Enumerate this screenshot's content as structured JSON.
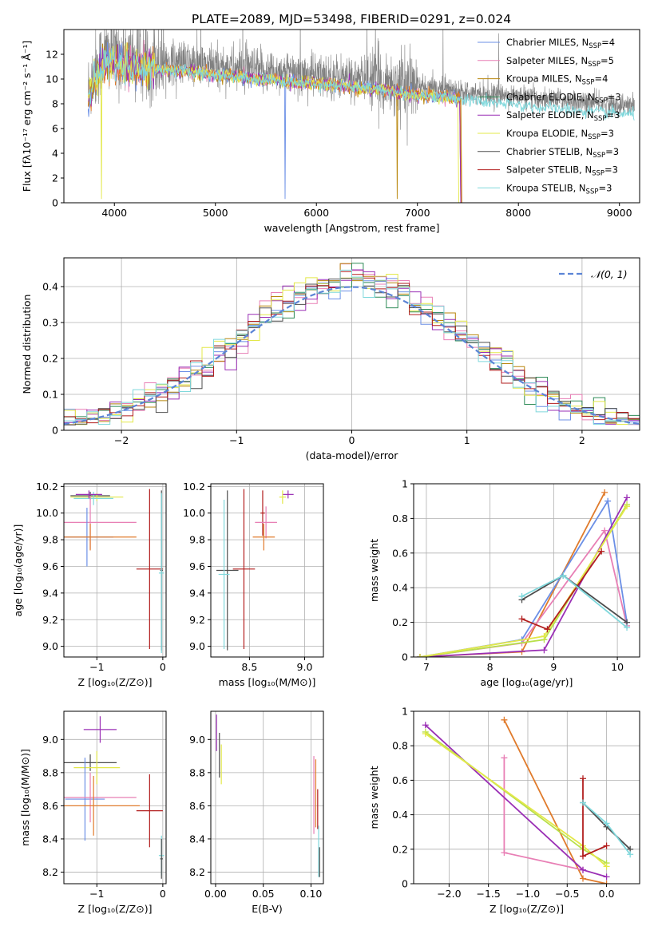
{
  "colors": {
    "Chabrier MILES": "#6b8fe6",
    "Salpeter MILES": "#e87fb5",
    "Kroupa MILES": "#b8860b",
    "Chabrier ELODIE": "#2e8b57",
    "Salpeter ELODIE": "#9a2fb5",
    "Kroupa ELODIE": "#e3e84a",
    "Chabrier STELIB": "#4d4d4d",
    "Salpeter STELIB": "#b21e1e",
    "Kroupa STELIB": "#7fd8dc",
    "orange": "#e07b2c",
    "lime": "#b8e04a",
    "grey": "#808080",
    "gauss": "#5b84d6"
  },
  "chart_data": [
    {
      "id": "spectrum",
      "type": "line",
      "title": "PLATE=2089, MJD=53498, FIBERID=0291, z=0.024",
      "xlabel": "wavelength [Angstrom, rest frame]",
      "ylabel": "Flux [fλ10⁻¹⁷ erg cm⁻² s⁻¹ Å⁻¹]",
      "xlim": [
        3500,
        9200
      ],
      "ylim": [
        0,
        14
      ],
      "xticks": [
        4000,
        5000,
        6000,
        7000,
        8000,
        9000
      ],
      "yticks": [
        0,
        2,
        4,
        6,
        8,
        10,
        12
      ],
      "legend_position": "top-right",
      "data_continuum": {
        "x": [
          3740,
          3800,
          3900,
          4000,
          4100,
          4200,
          4400,
          4600,
          4800,
          5000,
          5200,
          5400,
          5600,
          5800,
          6000,
          6200,
          6400,
          6600,
          6800,
          7000,
          7200,
          7400,
          7600,
          7800,
          8000,
          8200,
          8400,
          8600,
          8800,
          9000,
          9150
        ],
        "y": [
          9.0,
          10.5,
          12.0,
          12.0,
          11.8,
          11.6,
          11.5,
          11.4,
          11.2,
          11.0,
          10.9,
          10.7,
          10.6,
          10.4,
          10.3,
          10.2,
          10.0,
          9.9,
          9.6,
          9.4,
          9.3,
          9.1,
          8.9,
          8.7,
          8.6,
          8.4,
          8.3,
          8.1,
          8.0,
          7.9,
          7.8
        ]
      },
      "legend": [
        {
          "label": "Chabrier MILES, N",
          "sub": "SSP",
          "suffix": "=4",
          "color": "#6b8fe6"
        },
        {
          "label": "Salpeter MILES, N",
          "sub": "SSP",
          "suffix": "=5",
          "color": "#e87fb5"
        },
        {
          "label": "Kroupa MILES, N",
          "sub": "SSP",
          "suffix": "=4",
          "color": "#b8860b"
        },
        {
          "label": "Chabrier ELODIE, N",
          "sub": "SSP",
          "suffix": "=3",
          "color": "#2e8b57"
        },
        {
          "label": "Salpeter ELODIE, N",
          "sub": "SSP",
          "suffix": "=3",
          "color": "#9a2fb5"
        },
        {
          "label": "Kroupa ELODIE, N",
          "sub": "SSP",
          "suffix": "=3",
          "color": "#e3e84a"
        },
        {
          "label": "Chabrier STELIB, N",
          "sub": "SSP",
          "suffix": "=3",
          "color": "#4d4d4d"
        },
        {
          "label": "Salpeter STELIB, N",
          "sub": "SSP",
          "suffix": "=3",
          "color": "#b21e1e"
        },
        {
          "label": "Kroupa STELIB, N",
          "sub": "SSP",
          "suffix": "=3",
          "color": "#7fd8dc"
        }
      ]
    },
    {
      "id": "residuals",
      "type": "line",
      "xlabel": "(data-model)/error",
      "ylabel": "Normed distribution",
      "xlim": [
        -2.5,
        2.5
      ],
      "ylim": [
        0,
        0.48
      ],
      "xticks": [
        -2,
        -1,
        0,
        1,
        2
      ],
      "xtick_labels": [
        "−2",
        "−1",
        "0",
        "1",
        "2"
      ],
      "yticks": [
        0.0,
        0.1,
        0.2,
        0.3,
        0.4
      ],
      "legend_position": "top-right",
      "legend": [
        {
          "label": "𝒩(0, 1)",
          "color": "#5b84d6",
          "style": "dashed"
        }
      ]
    },
    {
      "id": "z_age",
      "type": "scatter",
      "xlabel": "Z [log₁₀(Z/Z⊙)]",
      "ylabel": "age  [log₁₀(age/yr)]",
      "xlim": [
        -1.5,
        0.05
      ],
      "ylim": [
        8.92,
        10.22
      ],
      "xticks": [
        -1,
        0
      ],
      "xtick_labels": [
        "−1",
        "0"
      ],
      "yticks": [
        9.0,
        9.2,
        9.4,
        9.6,
        9.8,
        10.0,
        10.2
      ],
      "ytick_labels": [
        "9.0",
        "9.2",
        "9.4",
        "9.6",
        "9.8",
        "10.0",
        "10.2"
      ],
      "crosses": [
        {
          "x": -1.1,
          "y": 10.13,
          "xerr": 0.3,
          "yerr": 0.03,
          "color": "#4d4d4d"
        },
        {
          "x": -1.0,
          "y": 10.12,
          "xerr": 0.4,
          "yerr": 0.03,
          "color": "#e3e84a"
        },
        {
          "x": -1.05,
          "y": 10.11,
          "xerr": 0.3,
          "yerr": 0.05,
          "color": "#7fd8dc"
        },
        {
          "x": -1.12,
          "y": 10.14,
          "xerr": 0.2,
          "yerr": 0.03,
          "color": "#9a2fb5"
        },
        {
          "x": -1.1,
          "y": 9.93,
          "xerr": 0.7,
          "yerr": 0.2,
          "color": "#e87fb5"
        },
        {
          "x": -1.15,
          "y": 9.82,
          "xerr": 0.4,
          "yerr": 0.22,
          "color": "#6b8fe6"
        },
        {
          "x": -1.1,
          "y": 9.82,
          "xerr": 0.7,
          "yerr": 0.1,
          "color": "#e07b2c"
        },
        {
          "x": -0.2,
          "y": 9.58,
          "xerr": 0.2,
          "yerr": 0.6,
          "color": "#b21e1e"
        },
        {
          "x": -0.02,
          "y": 9.57,
          "xerr": 0.02,
          "yerr": 0.6,
          "color": "#4d4d4d"
        },
        {
          "x": -0.02,
          "y": 9.55,
          "xerr": 0.04,
          "yerr": 0.6,
          "color": "#7fd8dc"
        }
      ]
    },
    {
      "id": "mass_age",
      "type": "scatter",
      "xlabel": "mass [log₁₀(M/M⊙)]",
      "ylabel": "",
      "xlim": [
        8.15,
        9.17
      ],
      "ylim": [
        8.92,
        10.22
      ],
      "xticks": [
        8.5,
        9.0
      ],
      "xtick_labels": [
        "8.5",
        "9.0"
      ],
      "yticks": [
        9.0,
        9.2,
        9.4,
        9.6,
        9.8,
        10.0,
        10.2
      ],
      "ytick_labels": [
        "9.0",
        "9.2",
        "9.4",
        "9.6",
        "9.8",
        "10.0",
        "10.2"
      ],
      "crosses": [
        {
          "x": 8.85,
          "y": 10.14,
          "xerr": 0.05,
          "yerr": 0.03,
          "color": "#9a2fb5"
        },
        {
          "x": 8.8,
          "y": 10.12,
          "xerr": 0.03,
          "yerr": 0.05,
          "color": "#e3e84a"
        },
        {
          "x": 8.62,
          "y": 10.0,
          "xerr": 0.02,
          "yerr": 0.17,
          "color": "#b21e1e"
        },
        {
          "x": 8.65,
          "y": 9.93,
          "xerr": 0.1,
          "yerr": 0.12,
          "color": "#e87fb5"
        },
        {
          "x": 8.63,
          "y": 9.82,
          "xerr": 0.1,
          "yerr": 0.1,
          "color": "#e07b2c"
        },
        {
          "x": 8.3,
          "y": 9.57,
          "xerr": 0.1,
          "yerr": 0.6,
          "color": "#4d4d4d"
        },
        {
          "x": 8.45,
          "y": 9.58,
          "xerr": 0.1,
          "yerr": 0.6,
          "color": "#b21e1e"
        },
        {
          "x": 8.27,
          "y": 9.54,
          "xerr": 0.05,
          "yerr": 0.56,
          "color": "#7fd8dc"
        }
      ]
    },
    {
      "id": "age_weight",
      "type": "line",
      "xlabel": "age  [log₁₀(age/yr)]",
      "ylabel": "mass weight",
      "xlim": [
        6.8,
        10.35
      ],
      "ylim": [
        0,
        1.0
      ],
      "xticks": [
        7,
        8,
        9,
        10
      ],
      "yticks": [
        0.0,
        0.2,
        0.4,
        0.6,
        0.8,
        1.0
      ],
      "series": [
        {
          "color": "#e07b2c",
          "x": [
            6.9,
            8.5,
            9.8
          ],
          "y": [
            0.0,
            0.03,
            0.95
          ]
        },
        {
          "color": "#e87fb5",
          "x": [
            6.9,
            8.5,
            9.8,
            10.15
          ],
          "y": [
            0.0,
            0.08,
            0.73,
            0.18
          ]
        },
        {
          "color": "#6b8fe6",
          "x": [
            6.9,
            8.5,
            9.85,
            10.15
          ],
          "y": [
            0.0,
            0.1,
            0.9,
            0.2
          ]
        },
        {
          "color": "#9a2fb5",
          "x": [
            6.9,
            8.85,
            10.15
          ],
          "y": [
            0.0,
            0.04,
            0.92
          ]
        },
        {
          "color": "#b8e04a",
          "x": [
            6.9,
            8.85,
            10.15
          ],
          "y": [
            0.0,
            0.1,
            0.88
          ]
        },
        {
          "color": "#e3e84a",
          "x": [
            6.9,
            8.85,
            10.15
          ],
          "y": [
            0.0,
            0.12,
            0.87
          ]
        },
        {
          "color": "#b21e1e",
          "x": [
            8.5,
            8.9,
            9.75
          ],
          "y": [
            0.22,
            0.16,
            0.61
          ]
        },
        {
          "color": "#4d4d4d",
          "x": [
            8.5,
            9.15,
            10.15
          ],
          "y": [
            0.33,
            0.47,
            0.2
          ]
        },
        {
          "color": "#7fd8dc",
          "x": [
            8.5,
            9.15,
            10.15
          ],
          "y": [
            0.35,
            0.47,
            0.17
          ]
        }
      ]
    },
    {
      "id": "z_mass",
      "type": "scatter",
      "xlabel": "Z [log₁₀(Z/Z⊙)]",
      "ylabel": "mass [log₁₀(M/M⊙)]",
      "xlim": [
        -1.5,
        0.05
      ],
      "ylim": [
        8.13,
        9.17
      ],
      "xticks": [
        -1,
        0
      ],
      "xtick_labels": [
        "−1",
        "0"
      ],
      "yticks": [
        8.2,
        8.4,
        8.6,
        8.8,
        9.0
      ],
      "ytick_labels": [
        "8.2",
        "8.4",
        "8.6",
        "8.8",
        "9.0"
      ],
      "crosses": [
        {
          "x": -0.95,
          "y": 9.06,
          "xerr": 0.25,
          "yerr": 0.08,
          "color": "#9a2fb5"
        },
        {
          "x": -1.1,
          "y": 8.86,
          "xerr": 0.4,
          "yerr": 0.05,
          "color": "#4d4d4d"
        },
        {
          "x": -1.0,
          "y": 8.83,
          "xerr": 0.35,
          "yerr": 0.1,
          "color": "#e3e84a"
        },
        {
          "x": -1.18,
          "y": 8.64,
          "xerr": 0.3,
          "yerr": 0.25,
          "color": "#6b8fe6"
        },
        {
          "x": -1.1,
          "y": 8.65,
          "xerr": 0.7,
          "yerr": 0.15,
          "color": "#e87fb5"
        },
        {
          "x": -1.05,
          "y": 8.6,
          "xerr": 0.7,
          "yerr": 0.18,
          "color": "#e07b2c"
        },
        {
          "x": -0.2,
          "y": 8.57,
          "xerr": 0.2,
          "yerr": 0.22,
          "color": "#b21e1e"
        },
        {
          "x": -0.02,
          "y": 8.3,
          "xerr": 0.04,
          "yerr": 0.12,
          "color": "#7fd8dc"
        },
        {
          "x": -0.02,
          "y": 8.28,
          "xerr": 0.02,
          "yerr": 0.12,
          "color": "#4d4d4d"
        }
      ]
    },
    {
      "id": "ebv_mass",
      "type": "scatter",
      "xlabel": "E(B-V)",
      "ylabel": "",
      "xlim": [
        -0.005,
        0.113
      ],
      "ylim": [
        8.13,
        9.17
      ],
      "xticks": [
        0.0,
        0.05,
        0.1
      ],
      "xtick_labels": [
        "0.00",
        "0.05",
        "0.10"
      ],
      "yticks": [
        8.2,
        8.4,
        8.6,
        8.8,
        9.0
      ],
      "ytick_labels": [
        "8.2",
        "8.4",
        "8.6",
        "8.8",
        "9.0"
      ],
      "vlines": [
        {
          "x": 0.001,
          "y0": 8.93,
          "y1": 9.15,
          "color": "#9a2fb5"
        },
        {
          "x": 0.004,
          "y0": 8.77,
          "y1": 9.04,
          "color": "#4d4d4d"
        },
        {
          "x": 0.006,
          "y0": 8.73,
          "y1": 8.97,
          "color": "#e3e84a"
        },
        {
          "x": 0.103,
          "y0": 8.43,
          "y1": 8.9,
          "color": "#e87fb5"
        },
        {
          "x": 0.105,
          "y0": 8.47,
          "y1": 8.88,
          "color": "#e07b2c"
        },
        {
          "x": 0.107,
          "y0": 8.46,
          "y1": 8.7,
          "color": "#b21e1e"
        },
        {
          "x": 0.108,
          "y0": 8.17,
          "y1": 8.48,
          "color": "#7fd8dc"
        },
        {
          "x": 0.109,
          "y0": 8.17,
          "y1": 8.35,
          "color": "#4d4d4d"
        }
      ]
    },
    {
      "id": "z_weight",
      "type": "line",
      "xlabel": "Z [log₁₀(Z/Z⊙)]",
      "ylabel": "mass weight",
      "xlim": [
        -2.45,
        0.42
      ],
      "ylim": [
        0,
        1.0
      ],
      "xticks": [
        -2.0,
        -1.5,
        -1.0,
        -0.5,
        0.0
      ],
      "xtick_labels": [
        "−2.0",
        "−1.5",
        "−1.0",
        "−0.5",
        "0.0"
      ],
      "yticks": [
        0.0,
        0.2,
        0.4,
        0.6,
        0.8,
        1.0
      ],
      "series": [
        {
          "color": "#e07b2c",
          "x": [
            -1.3,
            -0.3,
            0.0
          ],
          "y": [
            0.95,
            0.03,
            0.0
          ]
        },
        {
          "color": "#e87fb5",
          "x": [
            -1.3,
            -1.3,
            -0.3
          ],
          "y": [
            0.73,
            0.18,
            0.08
          ]
        },
        {
          "color": "#9a2fb5",
          "x": [
            -2.3,
            -0.3,
            0.0
          ],
          "y": [
            0.92,
            0.08,
            0.04
          ]
        },
        {
          "color": "#b8e04a",
          "x": [
            -2.3,
            -0.3,
            0.0
          ],
          "y": [
            0.88,
            0.2,
            0.12
          ]
        },
        {
          "color": "#e3e84a",
          "x": [
            -2.3,
            -0.3,
            0.0
          ],
          "y": [
            0.87,
            0.22,
            0.1
          ]
        },
        {
          "color": "#b21e1e",
          "x": [
            -0.3,
            -0.3,
            0.0
          ],
          "y": [
            0.61,
            0.16,
            0.22
          ]
        },
        {
          "color": "#4d4d4d",
          "x": [
            -0.3,
            0.0,
            0.3
          ],
          "y": [
            0.47,
            0.33,
            0.2
          ]
        },
        {
          "color": "#7fd8dc",
          "x": [
            -0.3,
            0.0,
            0.3
          ],
          "y": [
            0.47,
            0.35,
            0.17
          ]
        }
      ]
    }
  ]
}
